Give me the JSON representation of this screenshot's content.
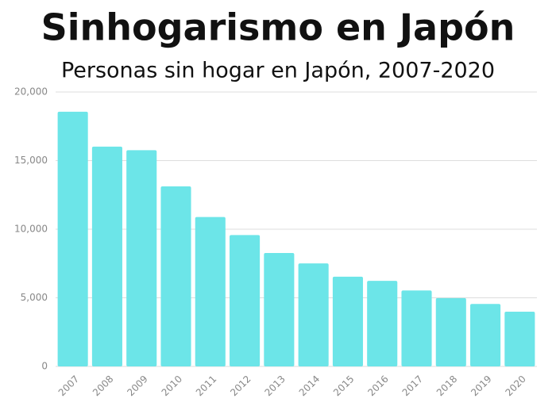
{
  "chart_data": {
    "type": "bar",
    "title": "Sinhogarismo en Japón",
    "subtitle": "Personas sin hogar en Japón, 2007-2020",
    "categories": [
      "2007",
      "2008",
      "2009",
      "2010",
      "2011",
      "2012",
      "2013",
      "2014",
      "2015",
      "2016",
      "2017",
      "2018",
      "2019",
      "2020"
    ],
    "values": [
      18564,
      16018,
      15759,
      13124,
      10890,
      9576,
      8265,
      7508,
      6541,
      6235,
      5534,
      4977,
      4555,
      3992
    ],
    "color": "#6ce5e8",
    "ylim": [
      0,
      20000
    ],
    "yticks": [
      0,
      {
        "value": 5000,
        "label": "5,000"
      },
      {
        "value": 10000,
        "label": "10,000"
      },
      {
        "value": 15000,
        "label": "15,000"
      },
      {
        "value": 20000,
        "label": "20,000"
      }
    ],
    "grid": true
  }
}
